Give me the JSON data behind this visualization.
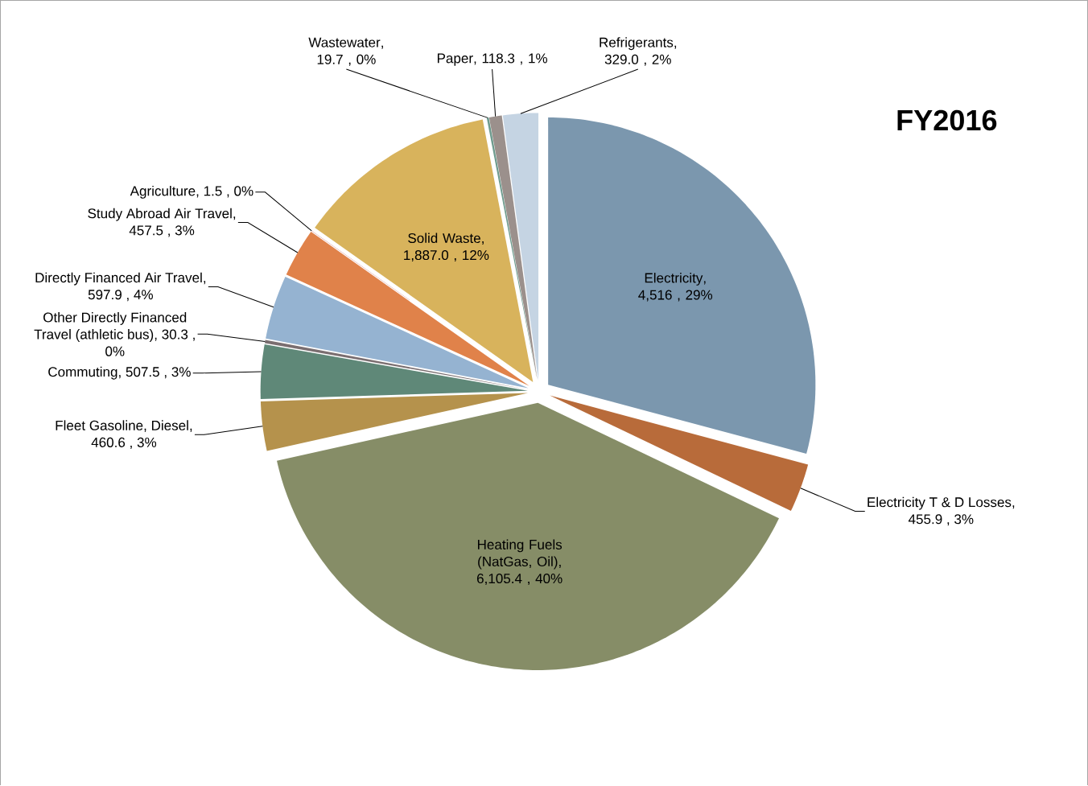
{
  "chart_data": {
    "type": "pie",
    "title": "FY2016",
    "categories": [
      "Electricity",
      "Electricity T & D Losses",
      "Heating Fuels (NatGas, Oil)",
      "Fleet Gasoline, Diesel",
      "Commuting",
      "Other Directly Financed Travel (athletic bus)",
      "Directly Financed Air Travel",
      "Study Abroad Air Travel",
      "Agriculture",
      "Solid Waste",
      "Wastewater",
      "Paper",
      "Refrigerants"
    ],
    "values": [
      4516,
      455.9,
      6105.4,
      460.6,
      507.5,
      30.3,
      597.9,
      457.5,
      1.5,
      1887.0,
      19.7,
      118.3,
      329.0
    ],
    "value_labels": [
      ",  4,516 , 29%",
      ",  455.9 , 3%",
      ",  6,105.4 , 40%",
      ",  460.6 , 3%",
      ",  507.5 , 3%",
      ", 30.3 , 0%",
      ",  597.9 , 4%",
      ", 457.5 , 3%",
      ",  1.5 , 0%",
      ", 1,887.0 , 12%",
      ", 19.7 , 0%",
      ", 118.3 , 1%",
      ", 329.0 , 2%"
    ],
    "colors": [
      "#7b97ae",
      "#b86b3a",
      "#868d67",
      "#b5924c",
      "#5f8878",
      "#7a6e70",
      "#95b3d1",
      "#e0824a",
      "#c0504d",
      "#d8b35c",
      "#6e9b8e",
      "#9b908c",
      "#c5d4e3"
    ]
  }
}
